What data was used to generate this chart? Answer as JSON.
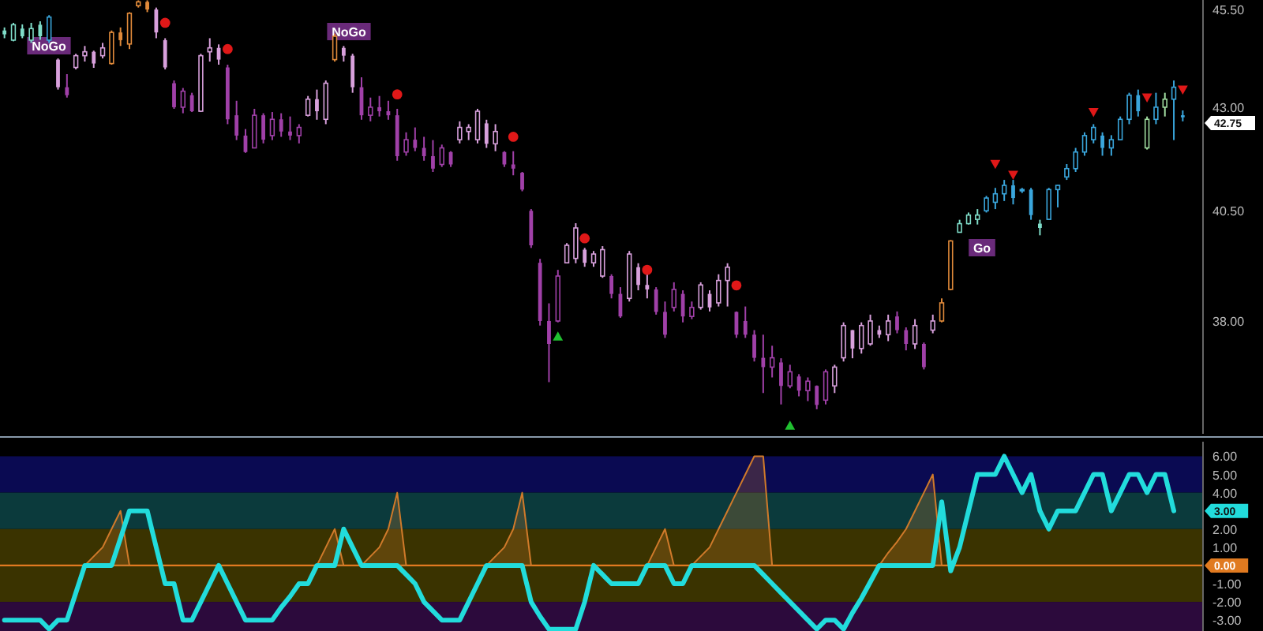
{
  "chart_data": [
    {
      "type": "candlestick",
      "log": "y",
      "tick_labels": "y",
      "categories": [
        null,
        null,
        null,
        null,
        null,
        null,
        null,
        null,
        null,
        null,
        null,
        null,
        null,
        null,
        null,
        null,
        null,
        null,
        null,
        null,
        null,
        null,
        null,
        null,
        null,
        null,
        null,
        null,
        null,
        null,
        null,
        null,
        null,
        null,
        null,
        null,
        null,
        null,
        null,
        null,
        null,
        null,
        null,
        null,
        null,
        null,
        null,
        null,
        null,
        null,
        null,
        null,
        null,
        null,
        null,
        null,
        null,
        null,
        null,
        null,
        null,
        null,
        null,
        null,
        null,
        null,
        null,
        null,
        null,
        null,
        null,
        null,
        null,
        null,
        null,
        null,
        null,
        null,
        null,
        null,
        null,
        null,
        null,
        null,
        null,
        null,
        null,
        null,
        null,
        null,
        null,
        null,
        null,
        null,
        null,
        null,
        null,
        null,
        null,
        null,
        null,
        null,
        null,
        null,
        null,
        null,
        null,
        null,
        null,
        null,
        null,
        null,
        null,
        null,
        null,
        null,
        null,
        null,
        null,
        null,
        null,
        null,
        null,
        null,
        null,
        null,
        null,
        null,
        null,
        null,
        null,
        null,
        null
      ],
      "ohlc": [
        [
          44.95,
          45.03,
          44.75,
          44.85
        ],
        [
          44.7,
          45.15,
          44.67,
          45.1
        ],
        [
          45.0,
          45.11,
          44.75,
          44.8
        ],
        [
          44.7,
          45.15,
          44.63,
          45.0
        ],
        [
          45.1,
          45.19,
          44.71,
          44.8
        ],
        [
          44.7,
          45.35,
          44.63,
          45.3
        ],
        [
          44.2,
          44.23,
          43.44,
          43.5
        ],
        [
          43.5,
          43.83,
          43.24,
          43.3
        ],
        [
          44.0,
          44.35,
          43.95,
          44.3
        ],
        [
          44.3,
          44.55,
          44.15,
          44.4
        ],
        [
          44.4,
          44.43,
          43.99,
          44.1
        ],
        [
          44.3,
          44.63,
          44.23,
          44.5
        ],
        [
          44.1,
          44.95,
          44.07,
          44.9
        ],
        [
          44.9,
          45.03,
          44.55,
          44.7
        ],
        [
          44.6,
          45.43,
          44.47,
          45.4
        ],
        [
          45.6,
          45.74,
          45.55,
          45.7
        ],
        [
          45.7,
          45.74,
          45.43,
          45.5
        ],
        [
          45.5,
          45.55,
          44.75,
          44.9
        ],
        [
          44.7,
          44.75,
          43.95,
          44.0
        ],
        [
          43.6,
          43.67,
          42.96,
          43.0
        ],
        [
          43.0,
          43.48,
          42.85,
          43.4
        ],
        [
          43.3,
          43.36,
          42.88,
          42.9
        ],
        [
          42.9,
          44.35,
          42.88,
          44.3
        ],
        [
          44.4,
          44.75,
          44.15,
          44.5
        ],
        [
          44.5,
          44.59,
          44.07,
          44.2
        ],
        [
          44.0,
          44.07,
          42.58,
          42.7
        ],
        [
          42.8,
          43.16,
          42.19,
          42.3
        ],
        [
          42.3,
          42.46,
          41.88,
          41.9
        ],
        [
          42.0,
          42.96,
          42.0,
          42.8
        ],
        [
          42.8,
          42.85,
          42.11,
          42.2
        ],
        [
          42.3,
          42.88,
          42.19,
          42.7
        ],
        [
          42.7,
          42.85,
          42.27,
          42.4
        ],
        [
          42.4,
          42.77,
          42.19,
          42.3
        ],
        [
          42.3,
          42.58,
          42.11,
          42.5
        ],
        [
          42.8,
          43.28,
          42.77,
          43.2
        ],
        [
          43.2,
          43.44,
          42.69,
          42.9
        ],
        [
          42.7,
          43.67,
          42.58,
          43.6
        ],
        [
          44.2,
          44.87,
          44.15,
          44.8
        ],
        [
          44.5,
          44.55,
          44.15,
          44.3
        ],
        [
          44.3,
          44.35,
          43.36,
          43.5
        ],
        [
          43.5,
          43.75,
          42.69,
          42.8
        ],
        [
          42.8,
          43.24,
          42.65,
          43.0
        ],
        [
          43.0,
          43.28,
          42.77,
          42.9
        ],
        [
          42.9,
          43.16,
          42.69,
          42.8
        ],
        [
          42.8,
          42.96,
          41.69,
          41.8
        ],
        [
          41.9,
          42.38,
          41.81,
          42.2
        ],
        [
          42.2,
          42.5,
          41.92,
          42.0
        ],
        [
          42.0,
          42.27,
          41.69,
          41.8
        ],
        [
          41.8,
          42.19,
          41.42,
          41.5
        ],
        [
          41.6,
          42.08,
          41.54,
          42.0
        ],
        [
          41.9,
          41.92,
          41.54,
          41.6
        ],
        [
          42.2,
          42.65,
          42.11,
          42.5
        ],
        [
          42.4,
          42.58,
          42.19,
          42.5
        ],
        [
          42.2,
          42.96,
          42.11,
          42.9
        ],
        [
          42.6,
          42.69,
          42.0,
          42.1
        ],
        [
          42.1,
          42.58,
          41.92,
          42.4
        ],
        [
          41.9,
          41.92,
          41.54,
          41.6
        ],
        [
          41.6,
          41.92,
          41.34,
          41.5
        ],
        [
          41.4,
          41.42,
          40.96,
          41.0
        ],
        [
          40.5,
          40.54,
          39.64,
          39.7
        ],
        [
          39.3,
          39.39,
          37.9,
          38.0
        ],
        [
          38.0,
          38.39,
          36.68,
          37.5
        ],
        [
          38.0,
          39.14,
          37.97,
          39.0
        ],
        [
          39.3,
          39.75,
          39.29,
          39.7
        ],
        [
          39.4,
          40.21,
          39.29,
          40.1
        ],
        [
          39.6,
          39.64,
          39.21,
          39.3
        ],
        [
          39.3,
          39.57,
          39.21,
          39.5
        ],
        [
          39.0,
          39.68,
          38.96,
          39.6
        ],
        [
          39.0,
          39.04,
          38.5,
          38.6
        ],
        [
          38.6,
          38.75,
          38.07,
          38.1
        ],
        [
          38.5,
          39.57,
          38.43,
          39.5
        ],
        [
          39.2,
          39.29,
          38.68,
          38.8
        ],
        [
          38.8,
          39.04,
          38.5,
          38.7
        ],
        [
          38.7,
          38.75,
          38.14,
          38.2
        ],
        [
          38.2,
          38.43,
          37.63,
          37.7
        ],
        [
          38.3,
          38.86,
          38.21,
          38.7
        ],
        [
          38.6,
          38.68,
          37.97,
          38.1
        ],
        [
          38.1,
          38.43,
          38.04,
          38.3
        ],
        [
          38.3,
          38.86,
          38.25,
          38.8
        ],
        [
          38.6,
          38.68,
          38.21,
          38.3
        ],
        [
          38.4,
          39.04,
          38.32,
          38.9
        ],
        [
          38.9,
          39.29,
          38.32,
          39.2
        ],
        [
          38.2,
          38.21,
          37.63,
          37.7
        ],
        [
          38.0,
          38.32,
          37.63,
          37.7
        ],
        [
          37.7,
          37.8,
          37.12,
          37.2
        ],
        [
          37.2,
          37.7,
          36.45,
          37.0
        ],
        [
          37.0,
          37.46,
          36.78,
          37.2
        ],
        [
          37.1,
          37.19,
          36.21,
          36.6
        ],
        [
          36.6,
          37.05,
          36.55,
          36.9
        ],
        [
          36.8,
          36.85,
          36.38,
          36.5
        ],
        [
          36.5,
          36.78,
          36.28,
          36.7
        ],
        [
          36.6,
          36.61,
          36.11,
          36.2
        ],
        [
          36.3,
          36.95,
          36.21,
          36.9
        ],
        [
          36.6,
          37.05,
          36.45,
          37.0
        ],
        [
          37.2,
          37.97,
          37.12,
          37.9
        ],
        [
          37.8,
          37.8,
          37.19,
          37.4
        ],
        [
          37.4,
          37.97,
          37.29,
          37.9
        ],
        [
          37.5,
          38.14,
          37.46,
          38.0
        ],
        [
          37.8,
          37.9,
          37.63,
          37.7
        ],
        [
          37.7,
          38.14,
          37.56,
          38.0
        ],
        [
          38.1,
          38.21,
          37.73,
          37.8
        ],
        [
          37.8,
          37.86,
          37.36,
          37.5
        ],
        [
          37.5,
          38.04,
          37.39,
          37.9
        ],
        [
          37.5,
          37.53,
          36.95,
          37.0
        ],
        [
          37.8,
          38.14,
          37.73,
          38.0
        ],
        [
          38.0,
          38.5,
          37.97,
          38.4
        ],
        [
          38.7,
          39.82,
          38.68,
          39.8
        ],
        [
          40.0,
          40.29,
          40.0,
          40.2
        ],
        [
          40.2,
          40.46,
          40.18,
          40.4
        ],
        [
          40.3,
          40.54,
          40.18,
          40.4
        ],
        [
          40.5,
          40.85,
          40.46,
          40.8
        ],
        [
          40.7,
          41.04,
          40.54,
          40.9
        ],
        [
          40.9,
          41.23,
          40.73,
          41.1
        ],
        [
          41.1,
          41.23,
          40.65,
          40.8
        ],
        [
          41.0,
          41.04,
          40.92,
          41.0
        ],
        [
          41.0,
          41.04,
          40.29,
          40.4
        ],
        [
          40.2,
          40.29,
          39.93,
          40.1
        ],
        [
          40.3,
          41.04,
          40.29,
          41.0
        ],
        [
          41.0,
          41.11,
          40.58,
          41.1
        ],
        [
          41.3,
          41.61,
          41.23,
          41.5
        ],
        [
          41.5,
          42.0,
          41.42,
          41.9
        ],
        [
          41.9,
          42.38,
          41.81,
          42.3
        ],
        [
          42.2,
          42.58,
          42.11,
          42.5
        ],
        [
          42.3,
          42.38,
          41.81,
          42.0
        ],
        [
          42.0,
          42.31,
          41.81,
          42.2
        ],
        [
          42.2,
          42.77,
          42.19,
          42.7
        ],
        [
          42.7,
          43.36,
          42.58,
          43.3
        ],
        [
          43.3,
          43.44,
          42.77,
          42.9
        ],
        [
          42.0,
          42.77,
          41.96,
          42.7
        ],
        [
          42.7,
          43.36,
          42.58,
          43.0
        ],
        [
          43.0,
          43.36,
          42.77,
          43.2
        ],
        [
          43.2,
          43.67,
          42.19,
          43.5
        ],
        [
          42.8,
          42.92,
          42.65,
          42.75
        ]
      ],
      "colors": [
        "#7fdcc8",
        "#7fdcc8",
        "#7fdcc8",
        "#7fdcc8",
        "#7fdcc8",
        "#3aa6dc",
        "#d8a0dc",
        "#a040a8",
        "#d8a0dc",
        "#d8a0dc",
        "#d8a0dc",
        "#d8a0dc",
        "#e08a3a",
        "#e08a3a",
        "#e08a3a",
        "#e08a3a",
        "#e08a3a",
        "#d8a0dc",
        "#d8a0dc",
        "#a040a8",
        "#a040a8",
        "#a040a8",
        "#d8a0dc",
        "#d8a0dc",
        "#d8a0dc",
        "#a040a8",
        "#a040a8",
        "#a040a8",
        "#a040a8",
        "#a040a8",
        "#a040a8",
        "#a040a8",
        "#a040a8",
        "#a040a8",
        "#d8a0dc",
        "#d8a0dc",
        "#d8a0dc",
        "#e08a3a",
        "#d8a0dc",
        "#d8a0dc",
        "#a040a8",
        "#a040a8",
        "#a040a8",
        "#a040a8",
        "#a040a8",
        "#a040a8",
        "#a040a8",
        "#a040a8",
        "#a040a8",
        "#a040a8",
        "#a040a8",
        "#d8a0dc",
        "#d8a0dc",
        "#d8a0dc",
        "#d8a0dc",
        "#d8a0dc",
        "#a040a8",
        "#a040a8",
        "#a040a8",
        "#a040a8",
        "#a040a8",
        "#a040a8",
        "#a040a8",
        "#d8a0dc",
        "#d8a0dc",
        "#d8a0dc",
        "#d8a0dc",
        "#d8a0dc",
        "#a040a8",
        "#a040a8",
        "#d8a0dc",
        "#d8a0dc",
        "#d8a0dc",
        "#a040a8",
        "#a040a8",
        "#a040a8",
        "#a040a8",
        "#a040a8",
        "#d8a0dc",
        "#d8a0dc",
        "#d8a0dc",
        "#d8a0dc",
        "#a040a8",
        "#a040a8",
        "#a040a8",
        "#a040a8",
        "#a040a8",
        "#a040a8",
        "#a040a8",
        "#a040a8",
        "#a040a8",
        "#a040a8",
        "#a040a8",
        "#d8a0dc",
        "#d8a0dc",
        "#d8a0dc",
        "#d8a0dc",
        "#d8a0dc",
        "#d8a0dc",
        "#d8a0dc",
        "#a040a8",
        "#a040a8",
        "#d8a0dc",
        "#a040a8",
        "#d8a0dc",
        "#e08a3a",
        "#e08a3a",
        "#7fdcc8",
        "#7fdcc8",
        "#7fdcc8",
        "#3aa6dc",
        "#3aa6dc",
        "#3aa6dc",
        "#3aa6dc",
        "#3aa6dc",
        "#3aa6dc",
        "#7fdcc8",
        "#3aa6dc",
        "#3aa6dc",
        "#3aa6dc",
        "#3aa6dc",
        "#3aa6dc",
        "#3aa6dc",
        "#3aa6dc",
        "#3aa6dc",
        "#3aa6dc",
        "#3aa6dc",
        "#3aa6dc",
        "#a0dca0",
        "#3aa6dc",
        "#a0dca0",
        "#3aa6dc",
        "#3aa6dc"
      ],
      "series": [
        {
          "type": "scatter",
          "marker": "circle",
          "color": "#e01818",
          "values": [
            null,
            null,
            null,
            null,
            null,
            null,
            null,
            null,
            null,
            null,
            null,
            null,
            null,
            null,
            null,
            null,
            null,
            null,
            45.15,
            null,
            null,
            null,
            null,
            null,
            null,
            44.47,
            null,
            null,
            null,
            null,
            null,
            null,
            null,
            null,
            null,
            null,
            null,
            null,
            null,
            null,
            null,
            null,
            null,
            null,
            43.32,
            null,
            null,
            null,
            null,
            null,
            null,
            null,
            null,
            null,
            null,
            null,
            null,
            42.27,
            null,
            null,
            null,
            null,
            null,
            null,
            null,
            39.86,
            null,
            null,
            null,
            null,
            null,
            null,
            39.14,
            null,
            null,
            null,
            null,
            null,
            null,
            null,
            null,
            null,
            38.79,
            null,
            null,
            null,
            null,
            null,
            null,
            null,
            null,
            null,
            null,
            null,
            null,
            null,
            null,
            null,
            null,
            null,
            null,
            null,
            null,
            null,
            null,
            null,
            null,
            null,
            null,
            null,
            null,
            null,
            null,
            null,
            null,
            null,
            null,
            null,
            null,
            null,
            null,
            null,
            null,
            null,
            null,
            null,
            null,
            null,
            null,
            null,
            null,
            null,
            null
          ]
        },
        {
          "type": "scatter",
          "marker": "triangle",
          "color": "#20c030",
          "values": [
            null,
            null,
            null,
            null,
            null,
            null,
            null,
            null,
            null,
            null,
            null,
            null,
            null,
            null,
            null,
            null,
            null,
            null,
            null,
            null,
            null,
            null,
            null,
            null,
            null,
            null,
            null,
            null,
            null,
            null,
            null,
            null,
            null,
            null,
            null,
            null,
            null,
            null,
            null,
            null,
            null,
            null,
            null,
            null,
            null,
            null,
            null,
            null,
            null,
            null,
            null,
            null,
            null,
            null,
            null,
            null,
            null,
            null,
            null,
            null,
            null,
            null,
            37.66,
            null,
            null,
            null,
            null,
            null,
            null,
            null,
            null,
            null,
            null,
            null,
            null,
            null,
            null,
            null,
            null,
            null,
            null,
            null,
            null,
            null,
            null,
            null,
            null,
            null,
            35.77,
            null,
            null,
            null,
            null,
            null,
            null,
            null,
            null,
            null,
            null,
            null,
            null,
            null,
            null,
            null,
            null,
            null,
            null,
            null,
            null,
            null,
            null,
            null,
            null,
            null,
            null,
            null,
            null,
            null,
            null,
            null,
            null,
            null,
            null,
            null,
            null,
            null,
            null,
            null,
            null,
            null,
            null,
            null,
            null
          ]
        },
        {
          "type": "scatter",
          "marker": "triangle",
          "color": "#e01818",
          "values": [
            null,
            null,
            null,
            null,
            null,
            null,
            null,
            null,
            null,
            null,
            null,
            null,
            null,
            null,
            null,
            null,
            null,
            null,
            null,
            null,
            null,
            null,
            null,
            null,
            null,
            null,
            null,
            null,
            null,
            null,
            null,
            null,
            null,
            null,
            null,
            null,
            null,
            null,
            null,
            null,
            null,
            null,
            null,
            null,
            null,
            null,
            null,
            null,
            null,
            null,
            null,
            null,
            null,
            null,
            null,
            null,
            null,
            null,
            null,
            null,
            null,
            null,
            null,
            null,
            null,
            null,
            null,
            null,
            null,
            null,
            null,
            null,
            null,
            null,
            null,
            null,
            null,
            null,
            null,
            null,
            null,
            null,
            null,
            null,
            null,
            null,
            null,
            null,
            null,
            null,
            null,
            null,
            null,
            null,
            null,
            null,
            null,
            null,
            null,
            null,
            null,
            null,
            null,
            null,
            null,
            null,
            null,
            null,
            null,
            null,
            null,
            41.61,
            null,
            41.35,
            null,
            null,
            null,
            null,
            null,
            null,
            null,
            null,
            42.88,
            null,
            null,
            null,
            null,
            null,
            43.24,
            null,
            null,
            null,
            43.44
          ]
        }
      ],
      "ylim": [
        35.6,
        45.75
      ],
      "yticks": [
        {
          "value": 38,
          "label": "38.00"
        },
        {
          "value": 40.5,
          "label": "40.50"
        },
        {
          "value": 43,
          "label": "43.00"
        },
        {
          "value": 45.5,
          "label": "45.50"
        }
      ],
      "annotations": [
        "NoGo",
        "NoGo",
        "Go",
        "42.75"
      ]
    },
    {
      "type": "line",
      "tick_labels": "y",
      "categories": [
        null,
        null,
        null,
        null,
        null,
        null,
        null,
        null,
        null,
        null,
        null,
        null,
        null,
        null,
        null,
        null,
        null,
        null,
        null,
        null,
        null,
        null,
        null,
        null,
        null,
        null,
        null,
        null,
        null,
        null,
        null,
        null,
        null,
        null,
        null,
        null,
        null,
        null,
        null,
        null,
        null,
        null,
        null,
        null,
        null,
        null,
        null,
        null,
        null,
        null,
        null,
        null,
        null,
        null,
        null,
        null,
        null,
        null,
        null,
        null,
        null,
        null,
        null,
        null,
        null,
        null,
        null,
        null,
        null,
        null,
        null,
        null,
        null,
        null,
        null,
        null,
        null,
        null,
        null,
        null,
        null,
        null,
        null,
        null,
        null,
        null,
        null,
        null,
        null,
        null,
        null,
        null,
        null,
        null,
        null,
        null,
        null,
        null,
        null,
        null,
        null,
        null,
        null,
        null,
        null,
        null,
        null,
        null,
        null,
        null,
        null,
        null,
        null,
        null,
        null,
        null,
        null,
        null,
        null,
        null,
        null,
        null,
        null,
        null,
        null,
        null,
        null,
        null,
        null,
        null,
        null,
        null,
        null
      ],
      "series": [
        {
          "type": "area",
          "color": "#d07a2a",
          "values": [
            null,
            null,
            null,
            null,
            null,
            null,
            null,
            null,
            null,
            0,
            0.5,
            1,
            2,
            3,
            0,
            null,
            null,
            null,
            null,
            null,
            null,
            null,
            null,
            null,
            null,
            null,
            null,
            null,
            null,
            null,
            null,
            null,
            null,
            null,
            null,
            0,
            1,
            2,
            0,
            null,
            0,
            0.5,
            1,
            2,
            4,
            0,
            null,
            null,
            null,
            null,
            null,
            null,
            null,
            null,
            0,
            0.5,
            1,
            2,
            4,
            0,
            null,
            null,
            null,
            null,
            null,
            null,
            null,
            null,
            null,
            null,
            null,
            null,
            0,
            1,
            2,
            0,
            null,
            0,
            0.5,
            1,
            2,
            3,
            4,
            5,
            6,
            6,
            0,
            null,
            null,
            null,
            null,
            null,
            null,
            null,
            null,
            null,
            null,
            null,
            0,
            0.7,
            1.3,
            2,
            3,
            4,
            5,
            0,
            null,
            null,
            null,
            null,
            null,
            null,
            null,
            null,
            null,
            null,
            null,
            null,
            null,
            null,
            null,
            null,
            null,
            null,
            null,
            null,
            null,
            null,
            null,
            null,
            null,
            null,
            null
          ]
        },
        {
          "type": "line",
          "color": "#22dcdc",
          "values": [
            -3,
            -3,
            -3,
            -3,
            -3,
            -3.5,
            -3,
            -3,
            -1.5,
            0,
            0,
            0,
            0,
            1.5,
            3,
            3,
            3,
            1,
            -1,
            -1,
            -3,
            -3,
            -2,
            -1,
            0,
            -1,
            -2,
            -3,
            -3,
            -3,
            -3,
            -2.3,
            -1.7,
            -1,
            -1,
            0,
            0,
            0,
            2,
            1,
            0,
            0,
            0,
            0,
            0,
            -0.5,
            -1,
            -2,
            -2.5,
            -3,
            -3,
            -3,
            -2,
            -1,
            0,
            0,
            0,
            0,
            0,
            -2,
            -2.8,
            -3.5,
            -3.5,
            -3.5,
            -3.5,
            -2,
            0,
            -0.5,
            -1,
            -1,
            -1,
            -1,
            0,
            0,
            0,
            -1,
            -1,
            0,
            0,
            0,
            0,
            0,
            0,
            0,
            0,
            -0.5,
            -1,
            -1.5,
            -2,
            -2.5,
            -3,
            -3.5,
            -3,
            -3,
            -3.5,
            -2.6,
            -1.8,
            -0.9,
            0,
            0,
            0,
            0,
            0,
            0,
            0,
            3.5,
            -0.3,
            1,
            3,
            5,
            5,
            5,
            6,
            5,
            4,
            5,
            3,
            2,
            3,
            3,
            3,
            4,
            5,
            5,
            3,
            4,
            5,
            5,
            4,
            5,
            5,
            3,
            null
          ]
        }
      ],
      "ylim": [
        -3.6,
        6.8
      ],
      "yticks": [
        {
          "value": -3,
          "label": "-3.00"
        },
        {
          "value": -2,
          "label": "-2.00"
        },
        {
          "value": -1,
          "label": "-1.00"
        },
        {
          "value": 1,
          "label": "1.00"
        },
        {
          "value": 2,
          "label": "2.00"
        },
        {
          "value": 4,
          "label": "4.00"
        },
        {
          "value": 5,
          "label": "5.00"
        },
        {
          "value": 6,
          "label": "6.00"
        }
      ],
      "bands": [
        {
          "axis": "y",
          "from": 4,
          "to": 6,
          "color": "#0a0a52"
        },
        {
          "axis": "y",
          "from": 2,
          "to": 4,
          "color": "#0b3a3c"
        },
        {
          "axis": "y",
          "from": -2,
          "to": 2,
          "color": "#3a3300"
        },
        {
          "axis": "y",
          "from": -3.6,
          "to": -2,
          "color": "#2c0a3c"
        }
      ],
      "ref_lines": [
        {
          "axis": "y",
          "value": 0,
          "label": "0.00",
          "color": "#e07a20"
        }
      ],
      "annotations": [
        {
          "text": "3.00",
          "y": 3
        }
      ]
    }
  ]
}
